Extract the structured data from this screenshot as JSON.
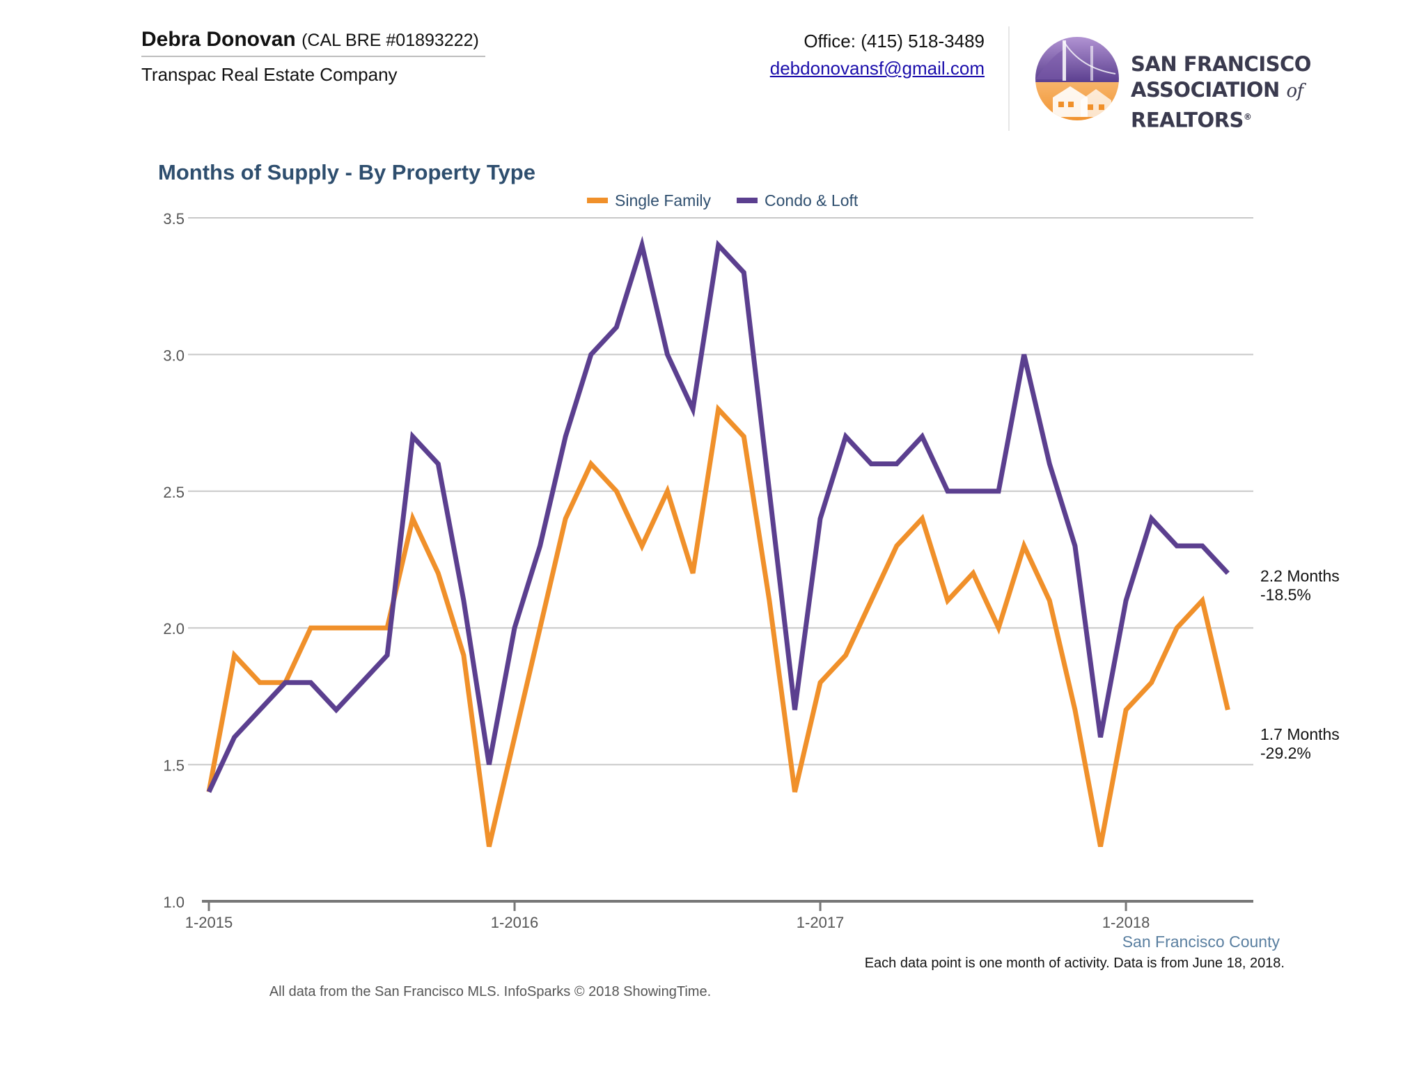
{
  "agent": {
    "name": "Debra Donovan",
    "license": "(CAL BRE #01893222)",
    "company": "Transpac Real Estate Company"
  },
  "contact": {
    "phone": "Office: (415) 518-3489",
    "email": "debdonovansf@gmail.com"
  },
  "logo": {
    "line1": "SAN FRANCISCO",
    "line2_a": "ASSOCIATION ",
    "line2_of": "of",
    "line2_b": " REALTORS",
    "mark": "®"
  },
  "colors": {
    "single_family": "#f0902a",
    "condo_loft": "#5b3f8f",
    "grid": "#c8c8c8",
    "axis": "#777777",
    "title": "#2e4e6e",
    "county": "#5a7fa0"
  },
  "chart_data": {
    "type": "line",
    "title": "Months of Supply - By Property Type",
    "legend_placement": "top-center",
    "grid": true,
    "ylim": [
      1.0,
      3.5
    ],
    "yticks": [
      "1.0",
      "1.5",
      "2.0",
      "2.5",
      "3.0",
      "3.5"
    ],
    "xticks": [
      {
        "label": "1-2015",
        "index": 0
      },
      {
        "label": "1-2016",
        "index": 12
      },
      {
        "label": "1-2017",
        "index": 24
      },
      {
        "label": "1-2018",
        "index": 36
      }
    ],
    "x_range": [
      0,
      41
    ],
    "series": [
      {
        "name": "Single Family",
        "values": [
          1.4,
          1.9,
          1.8,
          1.8,
          2.0,
          2.0,
          2.0,
          2.0,
          2.4,
          2.2,
          1.9,
          1.2,
          1.6,
          2.0,
          2.4,
          2.6,
          2.5,
          2.3,
          2.5,
          2.2,
          2.8,
          2.7,
          2.1,
          1.4,
          1.8,
          1.9,
          2.1,
          2.3,
          2.4,
          2.1,
          2.2,
          2.0,
          2.3,
          2.1,
          1.7,
          1.2,
          1.7,
          1.8,
          2.0,
          2.1,
          1.7
        ],
        "end_label": "1.7 Months",
        "end_change": "-29.2%"
      },
      {
        "name": "Condo & Loft",
        "values": [
          1.4,
          1.6,
          1.7,
          1.8,
          1.8,
          1.7,
          1.8,
          1.9,
          2.7,
          2.6,
          2.1,
          1.5,
          2.0,
          2.3,
          2.7,
          3.0,
          3.1,
          3.4,
          3.0,
          2.8,
          3.4,
          3.3,
          2.5,
          1.7,
          2.4,
          2.7,
          2.6,
          2.6,
          2.7,
          2.5,
          2.5,
          2.5,
          3.0,
          2.6,
          2.3,
          1.6,
          2.1,
          2.4,
          2.3,
          2.3,
          2.2
        ],
        "end_label": "2.2 Months",
        "end_change": "-18.5%"
      }
    ],
    "region_label": "San Francisco County"
  },
  "footnote": "Each data point is one month of activity. Data is from June 18, 2018.",
  "source": "All data from the San Francisco MLS. InfoSparks © 2018 ShowingTime."
}
